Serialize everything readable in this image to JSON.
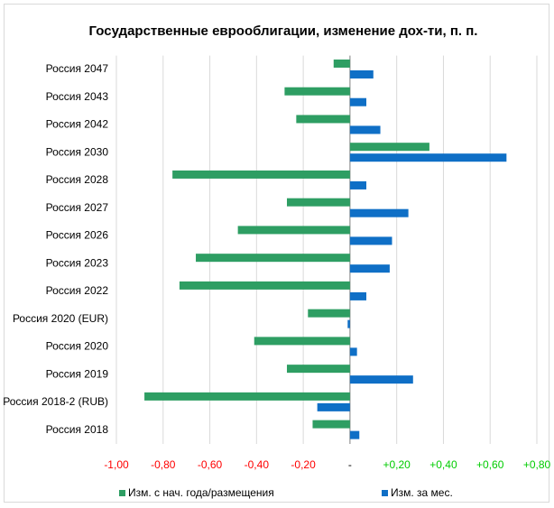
{
  "chart_data": {
    "type": "hbar",
    "title": "Государственные еврооблигации, изменение дох-ти, п. п.",
    "categories": [
      "Россия 2047",
      "Россия 2043",
      "Россия 2042",
      "Россия 2030",
      "Россия 2028",
      "Россия 2027",
      "Россия 2026",
      "Россия 2023",
      "Россия 2022",
      "Россия 2020 (EUR)",
      "Россия 2020",
      "Россия 2019",
      "Россия 2018-2 (RUB)",
      "Россия 2018"
    ],
    "series": [
      {
        "name": "Изм. с нач. года/размещения",
        "color": "#2e9e63",
        "values": [
          -0.07,
          -0.28,
          -0.23,
          0.34,
          -0.76,
          -0.27,
          -0.48,
          -0.66,
          -0.73,
          -0.18,
          -0.41,
          -0.27,
          -0.88,
          -0.16
        ]
      },
      {
        "name": "Изм. за мес.",
        "color": "#0f6fc6",
        "values": [
          0.1,
          0.07,
          0.13,
          0.67,
          0.07,
          0.25,
          0.18,
          0.17,
          0.07,
          -0.01,
          0.03,
          0.27,
          -0.14,
          0.04
        ]
      }
    ],
    "xlim": [
      -1.0,
      0.8
    ],
    "xticks": [
      {
        "value": -1.0,
        "label": "-1,00"
      },
      {
        "value": -0.8,
        "label": "-0,80"
      },
      {
        "value": -0.6,
        "label": "-0,60"
      },
      {
        "value": -0.4,
        "label": "-0,40"
      },
      {
        "value": -0.2,
        "label": "-0,20"
      },
      {
        "value": 0,
        "label": "-"
      },
      {
        "value": 0.2,
        "label": "+0,20"
      },
      {
        "value": 0.4,
        "label": "+0,40"
      },
      {
        "value": 0.6,
        "label": "+0,60"
      },
      {
        "value": 0.8,
        "label": "+0,80"
      }
    ],
    "grid": true,
    "legend": "bottom"
  }
}
